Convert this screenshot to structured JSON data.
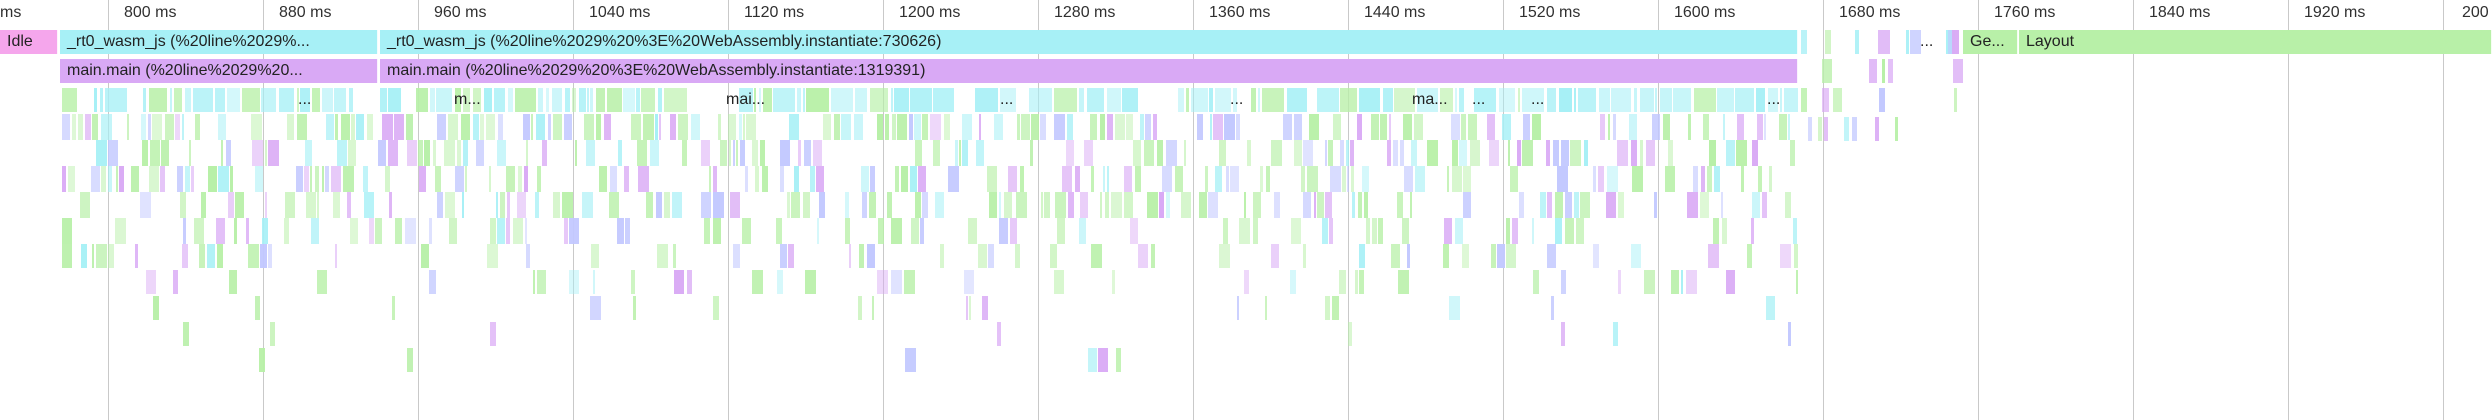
{
  "timeline": {
    "ticks": [
      "ms",
      "800 ms",
      "880 ms",
      "960 ms",
      "1040 ms",
      "1120 ms",
      "1200 ms",
      "1280 ms",
      "1360 ms",
      "1440 ms",
      "1520 ms",
      "1600 ms",
      "1680 ms",
      "1760 ms",
      "1840 ms",
      "1920 ms",
      "200"
    ],
    "events": [
      {
        "label": "Idle",
        "color": "#f5a6ec"
      },
      {
        "label": "_rt0_wasm_js (%20line%2029%...",
        "color": "#a7f0f6"
      },
      {
        "label": "_rt0_wasm_js (%20line%2029%20%3E%20WebAssembly.instantiate:730626)",
        "color": "#a7f0f6"
      },
      {
        "label": "main.main (%20line%2029%20...",
        "color": "#d9a9f5"
      },
      {
        "label": "main.main (%20line%2029%20%3E%20WebAssembly.instantiate:1319391)",
        "color": "#d9a9f5"
      },
      {
        "label": "Ge...",
        "color": "#b8f0a8"
      },
      {
        "label": "Layout",
        "color": "#b8f0a8"
      }
    ],
    "row3_labels": [
      "...",
      "m...",
      "mai...",
      "...",
      "...",
      "ma...",
      "...",
      "...",
      "..."
    ],
    "aux_labels": [
      "..."
    ]
  },
  "colors": {
    "cyan": "#a7f0f6",
    "purple": "#d9a9f5",
    "green": "#b8f0a8",
    "pink": "#f5a6ec",
    "blue": "#c2c8ff",
    "grid": "#c9c9c9"
  }
}
